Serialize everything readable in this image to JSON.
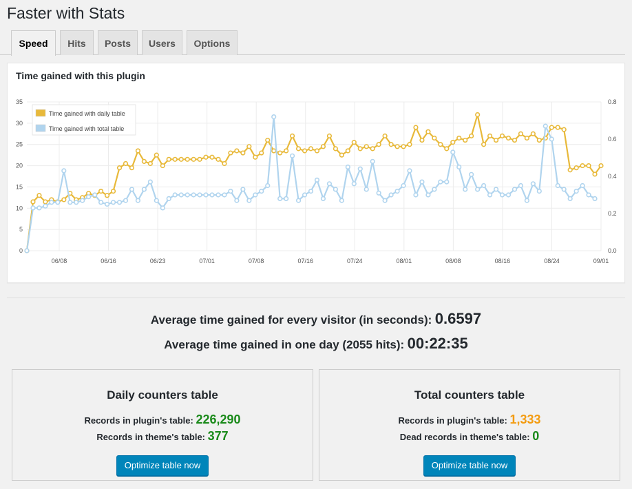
{
  "page": {
    "title": "Faster with Stats"
  },
  "tabs": [
    {
      "label": "Speed",
      "active": true
    },
    {
      "label": "Hits",
      "active": false
    },
    {
      "label": "Posts",
      "active": false
    },
    {
      "label": "Users",
      "active": false
    },
    {
      "label": "Options",
      "active": false
    }
  ],
  "chart_panel": {
    "title": "Time gained with this plugin"
  },
  "chart_data": {
    "type": "line",
    "title": "Time gained with this plugin",
    "x_tick_labels": [
      "06/08",
      "06/16",
      "06/23",
      "07/01",
      "07/08",
      "07/16",
      "07/24",
      "08/01",
      "08/08",
      "08/16",
      "08/24",
      "09/01"
    ],
    "y_left_ticks": [
      0,
      5,
      10,
      15,
      20,
      25,
      30,
      35
    ],
    "y_right_ticks": [
      "0.0",
      "0.2",
      "0.4",
      "0.6",
      "0.8"
    ],
    "ylim_left": [
      0,
      35
    ],
    "ylim_right": [
      0,
      0.8
    ],
    "grid": true,
    "legend_position": "top-left",
    "series": [
      {
        "name": "Time gained with daily table",
        "axis": "left",
        "color": "#e8b93a",
        "values": [
          0,
          11.5,
          13,
          11.5,
          12,
          11.5,
          12,
          13.5,
          12,
          12.5,
          13.5,
          13,
          14,
          13,
          14,
          19.5,
          20.5,
          19.5,
          23.5,
          21,
          20.5,
          22.5,
          20,
          21.5,
          21.5,
          21.5,
          21.5,
          21.5,
          21.5,
          22,
          22,
          21.5,
          20.5,
          23,
          23.5,
          23,
          24.5,
          22,
          23,
          26,
          23.5,
          23,
          23.5,
          27,
          24,
          23.5,
          24,
          23.5,
          24.5,
          27,
          24,
          22.5,
          23.5,
          25.5,
          24,
          24.5,
          24,
          25,
          27,
          25,
          24.5,
          24.5,
          25,
          29,
          26,
          28,
          26.5,
          25,
          24,
          25.5,
          26.5,
          26,
          27,
          32,
          25,
          27,
          26,
          27,
          26.5,
          26,
          27.5,
          26.5,
          27.5,
          26,
          26.5,
          29,
          29,
          28.5,
          19,
          19.5,
          20,
          20,
          18,
          20
        ]
      },
      {
        "name": "Time gained with total table",
        "axis": "right",
        "color": "#b0d4ee",
        "values": [
          0,
          0.23,
          0.23,
          0.24,
          0.26,
          0.26,
          0.43,
          0.26,
          0.26,
          0.27,
          0.29,
          0.3,
          0.26,
          0.25,
          0.26,
          0.26,
          0.27,
          0.33,
          0.27,
          0.33,
          0.37,
          0.27,
          0.23,
          0.28,
          0.3,
          0.3,
          0.3,
          0.3,
          0.3,
          0.3,
          0.3,
          0.3,
          0.3,
          0.32,
          0.27,
          0.33,
          0.27,
          0.3,
          0.32,
          0.35,
          0.72,
          0.28,
          0.28,
          0.51,
          0.27,
          0.3,
          0.32,
          0.38,
          0.28,
          0.36,
          0.33,
          0.27,
          0.45,
          0.36,
          0.44,
          0.33,
          0.48,
          0.31,
          0.27,
          0.3,
          0.32,
          0.35,
          0.43,
          0.3,
          0.37,
          0.3,
          0.33,
          0.37,
          0.37,
          0.53,
          0.45,
          0.33,
          0.41,
          0.33,
          0.35,
          0.3,
          0.33,
          0.3,
          0.3,
          0.33,
          0.35,
          0.27,
          0.36,
          0.32,
          0.67,
          0.6,
          0.35,
          0.33,
          0.28,
          0.32,
          0.35,
          0.3,
          0.28
        ]
      }
    ]
  },
  "averages": {
    "visitor_label": "Average time gained for every visitor (in seconds):",
    "visitor_value": "0.6597",
    "day_label": "Average time gained in one day (2055 hits):",
    "day_value": "00:22:35"
  },
  "daily_box": {
    "title": "Daily counters table",
    "plugin_label": "Records in plugin's table:",
    "plugin_value": "226,290",
    "theme_label": "Records in theme's table:",
    "theme_value": "377",
    "button_label": "Optimize table now"
  },
  "total_box": {
    "title": "Total counters table",
    "plugin_label": "Records in plugin's table:",
    "plugin_value": "1,333",
    "dead_label": "Dead records in theme's table:",
    "dead_value": "0",
    "button_label": "Optimize table now"
  }
}
